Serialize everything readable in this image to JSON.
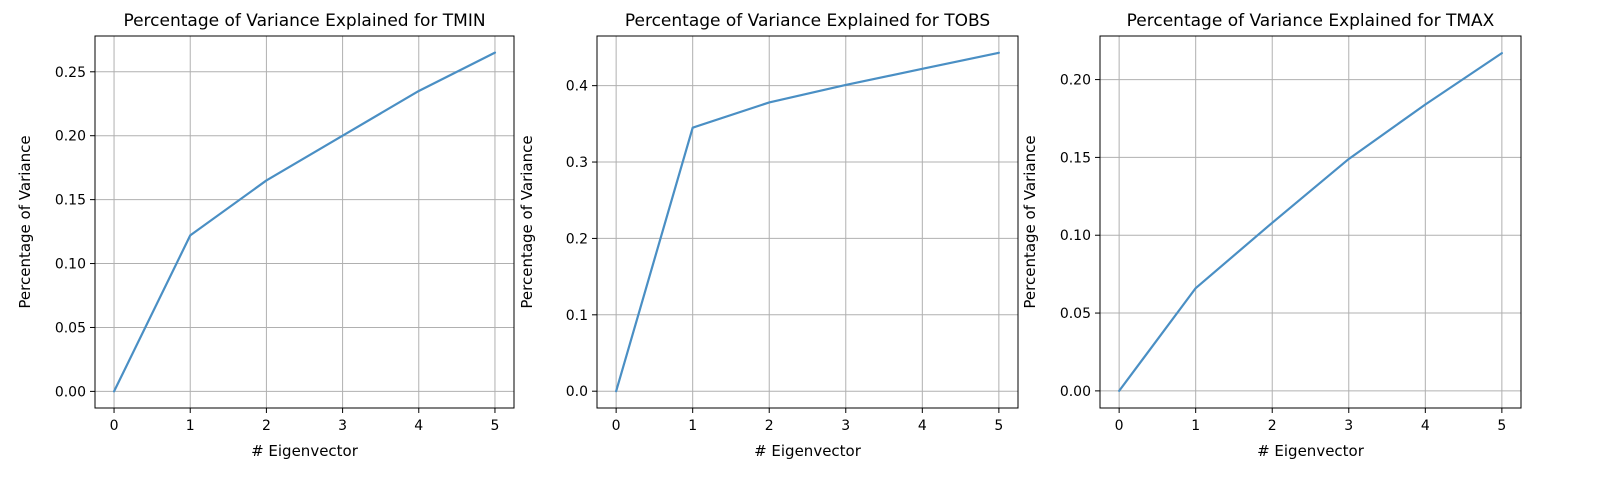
{
  "colors": {
    "series": "#4a8fc4"
  },
  "chart_data": [
    {
      "type": "line",
      "title": "Percentage of Variance Explained for TMIN",
      "xlabel": "# Eigenvector",
      "ylabel": "Percentage of Variance",
      "x": [
        0,
        1,
        2,
        3,
        4,
        5
      ],
      "values": [
        0.0,
        0.122,
        0.165,
        0.2,
        0.235,
        0.265
      ],
      "xlim": [
        -0.25,
        5.25
      ],
      "ylim": [
        -0.013,
        0.278
      ],
      "xticks": [
        0,
        1,
        2,
        3,
        4,
        5
      ],
      "xtick_labels": [
        "0",
        "1",
        "2",
        "3",
        "4",
        "5"
      ],
      "yticks": [
        0.0,
        0.05,
        0.1,
        0.15,
        0.2,
        0.25
      ],
      "ytick_labels": [
        "0.00",
        "0.05",
        "0.10",
        "0.15",
        "0.20",
        "0.25"
      ],
      "grid": true
    },
    {
      "type": "line",
      "title": "Percentage of Variance Explained for TOBS",
      "xlabel": "# Eigenvector",
      "ylabel": "Percentage of Variance",
      "x": [
        0,
        1,
        2,
        3,
        4,
        5
      ],
      "values": [
        0.0,
        0.345,
        0.378,
        0.401,
        0.422,
        0.443
      ],
      "xlim": [
        -0.25,
        5.25
      ],
      "ylim": [
        -0.022,
        0.465
      ],
      "xticks": [
        0,
        1,
        2,
        3,
        4,
        5
      ],
      "xtick_labels": [
        "0",
        "1",
        "2",
        "3",
        "4",
        "5"
      ],
      "yticks": [
        0.0,
        0.1,
        0.2,
        0.3,
        0.4
      ],
      "ytick_labels": [
        "0.0",
        "0.1",
        "0.2",
        "0.3",
        "0.4"
      ],
      "grid": true
    },
    {
      "type": "line",
      "title": "Percentage of Variance Explained for TMAX",
      "xlabel": "# Eigenvector",
      "ylabel": "Percentage of Variance",
      "x": [
        0,
        1,
        2,
        3,
        4,
        5
      ],
      "values": [
        0.0,
        0.066,
        0.108,
        0.149,
        0.184,
        0.217
      ],
      "xlim": [
        -0.25,
        5.25
      ],
      "ylim": [
        -0.011,
        0.228
      ],
      "xticks": [
        0,
        1,
        2,
        3,
        4,
        5
      ],
      "xtick_labels": [
        "0",
        "1",
        "2",
        "3",
        "4",
        "5"
      ],
      "yticks": [
        0.0,
        0.05,
        0.1,
        0.15,
        0.2
      ],
      "ytick_labels": [
        "0.00",
        "0.05",
        "0.10",
        "0.15",
        "0.20"
      ],
      "grid": true
    }
  ]
}
